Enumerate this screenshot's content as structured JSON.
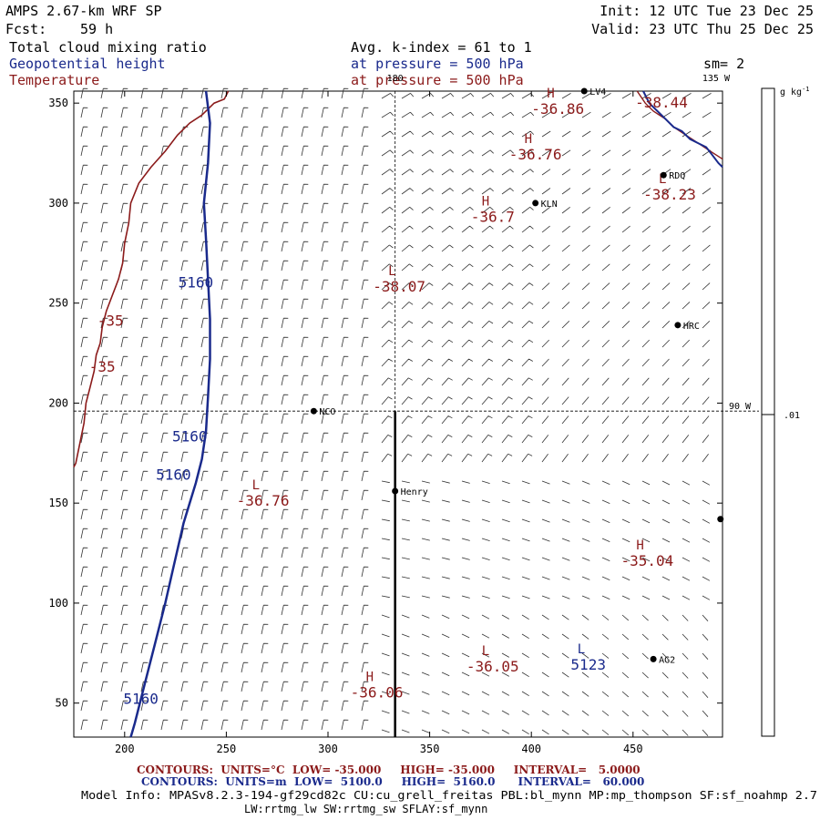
{
  "header": {
    "model": "AMPS 2.67-km WRF SP",
    "fcst_label": "Fcst:",
    "fcst_value": "59 h",
    "init": "Init: 12 UTC Tue 23 Dec 25",
    "valid": "Valid: 23 UTC Thu 25 Dec 25",
    "field1": "Total cloud mixing ratio",
    "field2": "Geopotential height",
    "field3": "Temperature",
    "avg": "Avg. k-index =  61 to   1",
    "pressure_blue": "at pressure =  500 hPa",
    "pressure_red": "at pressure =  500 hPa",
    "sm": "sm= 2"
  },
  "colorbar": {
    "unit": "g kg",
    "unit_sup": "-1",
    "value": ".01"
  },
  "footer": {
    "temp_contours": "CONTOURS:  UNITS=°C  LOW= -35.000     HIGH= -35.000     INTERVAL=   5.0000",
    "height_contours": "CONTOURS:  UNITS=m  LOW=  5100.0     HIGH=  5160.0      INTERVAL=   60.000",
    "model_info": "Model Info: MPASv8.2.3-194-gf29cd82c CU:cu_grell_freitas PBL:bl_mynn MP:mp_thompson SF:sf_noahmp 2.7",
    "model_info2": "LW:rrtmg_lw SW:rrtmg_sw SFLAY:sf_mynn"
  },
  "chart_data": {
    "type": "scatter",
    "title": "",
    "xlabel": "",
    "ylabel": "",
    "xlim": [
      175,
      494
    ],
    "ylim": [
      33,
      356
    ],
    "xticks": [
      200,
      250,
      300,
      350,
      400,
      450
    ],
    "yticks": [
      50,
      100,
      150,
      200,
      250,
      300,
      350
    ],
    "grid": false,
    "meridians": [
      {
        "label": "180",
        "x": 333
      },
      {
        "label": "135 W",
        "x": 494,
        "y": 356
      },
      {
        "label": "90 W",
        "y": 196
      }
    ],
    "cross_section": {
      "x": 333,
      "y_from": 33,
      "y_to": 196
    },
    "stations": [
      {
        "name": "NCO",
        "x": 293,
        "y": 196
      },
      {
        "name": "Henry",
        "x": 333,
        "y": 156
      },
      {
        "name": "KLN",
        "x": 402,
        "y": 300
      },
      {
        "name": "RDQ",
        "x": 465,
        "y": 314
      },
      {
        "name": "HRC",
        "x": 472,
        "y": 239
      },
      {
        "name": "AG2",
        "x": 460,
        "y": 72
      },
      {
        "name": "LV4",
        "x": 426,
        "y": 356
      },
      {
        "name": "",
        "x": 493,
        "y": 142
      }
    ],
    "temperature_labels": [
      {
        "marker": "H",
        "value": "-36.86",
        "x": 413,
        "y": 347
      },
      {
        "marker": "H",
        "value": "-36.76",
        "x": 402,
        "y": 324
      },
      {
        "marker": "L",
        "value": "-38.23",
        "x": 468,
        "y": 304
      },
      {
        "marker": "H",
        "value": "-36.7",
        "x": 381,
        "y": 293
      },
      {
        "marker": "L",
        "value": "-38.07",
        "x": 335,
        "y": 258
      },
      {
        "marker": "",
        "value": "-38.44",
        "x": 464,
        "y": 350
      },
      {
        "marker": "",
        "value": "-35",
        "x": 193,
        "y": 241
      },
      {
        "marker": "",
        "value": "-35",
        "x": 189,
        "y": 218
      },
      {
        "marker": "L",
        "value": "-36.76",
        "x": 268,
        "y": 151
      },
      {
        "marker": "H",
        "value": "-35.04",
        "x": 457,
        "y": 121
      },
      {
        "marker": "L",
        "value": "-36.05",
        "x": 381,
        "y": 68
      },
      {
        "marker": "H",
        "value": "-36.06",
        "x": 324,
        "y": 55
      }
    ],
    "height_labels": [
      {
        "marker": "",
        "value": "5160",
        "x": 235,
        "y": 260
      },
      {
        "marker": "",
        "value": "5160",
        "x": 232,
        "y": 183
      },
      {
        "marker": "",
        "value": "5160",
        "x": 224,
        "y": 164
      },
      {
        "marker": "",
        "value": "5160",
        "x": 208,
        "y": 52
      },
      {
        "marker": "L",
        "value": "5123",
        "x": 428,
        "y": 69
      }
    ],
    "height_5160_contour": [
      [
        240,
        356
      ],
      [
        242,
        340
      ],
      [
        241,
        320
      ],
      [
        239,
        300
      ],
      [
        240,
        282
      ],
      [
        241,
        262
      ],
      [
        242,
        242
      ],
      [
        242,
        222
      ],
      [
        241,
        203
      ],
      [
        240,
        186
      ],
      [
        238,
        172
      ],
      [
        235,
        160
      ],
      [
        229,
        140
      ],
      [
        224,
        118
      ],
      [
        220,
        100
      ],
      [
        215,
        80
      ],
      [
        210,
        60
      ],
      [
        205,
        40
      ],
      [
        203,
        33
      ]
    ],
    "temperature_35_contour": [
      [
        251,
        356
      ],
      [
        249,
        352
      ],
      [
        244,
        350
      ],
      [
        238,
        344
      ],
      [
        232,
        340
      ],
      [
        226,
        334
      ],
      [
        220,
        326
      ],
      [
        213,
        318
      ],
      [
        207,
        310
      ],
      [
        203,
        300
      ],
      [
        202,
        290
      ],
      [
        200,
        280
      ],
      [
        199,
        270
      ],
      [
        197,
        262
      ],
      [
        194,
        254
      ],
      [
        191,
        246
      ],
      [
        189,
        238
      ],
      [
        188,
        230
      ],
      [
        186,
        224
      ],
      [
        185,
        216
      ],
      [
        183,
        208
      ],
      [
        181,
        200
      ],
      [
        180,
        190
      ],
      [
        178,
        180
      ],
      [
        176,
        170
      ],
      [
        175,
        168
      ]
    ],
    "topright_height_contour": [
      [
        455,
        356
      ],
      [
        458,
        350
      ],
      [
        462,
        346
      ],
      [
        466,
        342
      ],
      [
        470,
        338
      ],
      [
        474,
        336
      ],
      [
        478,
        332
      ],
      [
        482,
        330
      ],
      [
        486,
        328
      ],
      [
        489,
        324
      ],
      [
        492,
        320
      ],
      [
        494,
        318
      ]
    ],
    "topright_temp_contour": [
      [
        452,
        356
      ],
      [
        456,
        350
      ],
      [
        460,
        346
      ],
      [
        466,
        342
      ],
      [
        470,
        338
      ],
      [
        476,
        334
      ],
      [
        482,
        330
      ],
      [
        488,
        326
      ],
      [
        494,
        322
      ]
    ]
  }
}
